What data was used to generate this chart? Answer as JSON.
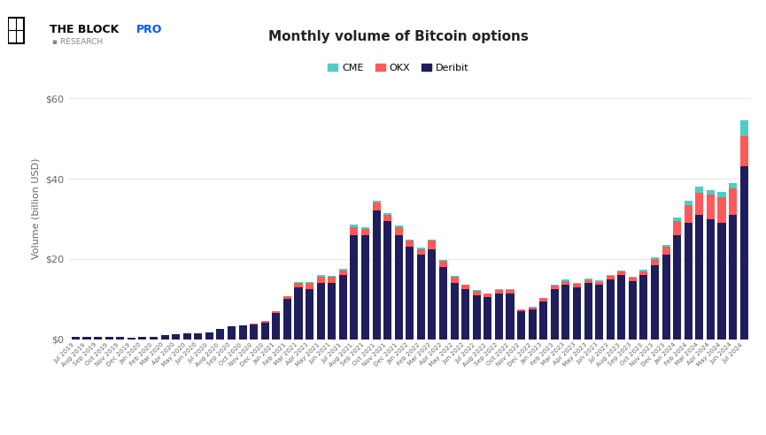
{
  "title": "Monthly volume of Bitcoin options",
  "ylabel": "Volume (billion USD)",
  "legend": [
    "CME",
    "OKX",
    "Deribit"
  ],
  "cme_color": "#4ecdc4",
  "okx_color": "#ff5a5a",
  "deribit_color": "#1e1e5c",
  "background_color": "#ffffff",
  "grid_color": "#e8e8e8",
  "ylim": [
    0,
    65
  ],
  "yticks": [
    0,
    20,
    40,
    60
  ],
  "ytick_labels": [
    "$0",
    "$20",
    "$40",
    "$60"
  ],
  "months": [
    "Jul 2019",
    "Aug 2019",
    "Sep 2019",
    "Oct 2019",
    "Nov 2019",
    "Dec 2019",
    "Jan 2020",
    "Feb 2020",
    "Mar 2020",
    "Apr 2020",
    "May 2020",
    "Jun 2020",
    "Jul 2020",
    "Aug 2020",
    "Sep 2020",
    "Oct 2020",
    "Nov 2020",
    "Dec 2020",
    "Jan 2021",
    "Feb 2021",
    "Mar 2021",
    "Apr 2021",
    "May 2021",
    "Jun 2021",
    "Jul 2021",
    "Aug 2021",
    "Sep 2021",
    "Oct 2021",
    "Nov 2021",
    "Dec 2021",
    "Jan 2022",
    "Feb 2022",
    "Mar 2022",
    "Apr 2022",
    "May 2022",
    "Jun 2022",
    "Jul 2022",
    "Aug 2022",
    "Sep 2022",
    "Oct 2022",
    "Nov 2022",
    "Dec 2022",
    "Jan 2023",
    "Feb 2023",
    "Mar 2023",
    "Apr 2023",
    "May 2023",
    "Jun 2023",
    "Jul 2023",
    "Aug 2023",
    "Sep 2023",
    "Oct 2023",
    "Nov 2023",
    "Dec 2023",
    "Jan 2024",
    "Feb 2024",
    "Mar 2024",
    "Apr 2024",
    "May 2024",
    "Jun 2024",
    "Jul 2024"
  ],
  "deribit": [
    0.7,
    0.5,
    0.5,
    0.5,
    0.5,
    0.4,
    0.7,
    0.7,
    1.0,
    1.2,
    1.5,
    1.5,
    1.8,
    2.5,
    3.2,
    3.5,
    3.8,
    4.2,
    6.5,
    10.0,
    13.0,
    12.5,
    14.0,
    14.0,
    16.0,
    26.0,
    26.0,
    32.0,
    29.5,
    26.0,
    23.0,
    21.0,
    22.5,
    18.0,
    14.0,
    12.5,
    11.0,
    10.5,
    11.5,
    11.5,
    7.0,
    7.5,
    9.5,
    12.5,
    13.5,
    13.0,
    14.0,
    13.5,
    15.0,
    16.0,
    14.5,
    16.0,
    18.5,
    21.0,
    26.0,
    29.0,
    31.0,
    30.0,
    29.0,
    31.0,
    43.0
  ],
  "okx": [
    0.0,
    0.0,
    0.0,
    0.0,
    0.0,
    0.0,
    0.0,
    0.0,
    0.0,
    0.0,
    0.0,
    0.0,
    0.0,
    0.0,
    0.0,
    0.0,
    0.2,
    0.3,
    0.5,
    0.8,
    1.0,
    1.5,
    1.5,
    1.5,
    1.2,
    2.0,
    1.5,
    2.0,
    1.5,
    2.0,
    1.5,
    1.5,
    2.0,
    1.5,
    1.5,
    1.0,
    1.0,
    0.8,
    0.8,
    0.8,
    0.4,
    0.4,
    0.7,
    0.8,
    1.0,
    0.8,
    0.8,
    0.8,
    0.8,
    0.8,
    0.8,
    1.0,
    1.5,
    2.0,
    3.5,
    4.5,
    5.5,
    6.0,
    6.5,
    6.5,
    7.5
  ],
  "cme": [
    0.0,
    0.0,
    0.0,
    0.0,
    0.0,
    0.0,
    0.0,
    0.0,
    0.0,
    0.0,
    0.0,
    0.0,
    0.0,
    0.0,
    0.0,
    0.0,
    0.0,
    0.0,
    0.0,
    0.0,
    0.2,
    0.3,
    0.5,
    0.4,
    0.3,
    0.5,
    0.4,
    0.5,
    0.4,
    0.4,
    0.4,
    0.3,
    0.4,
    0.3,
    0.3,
    0.2,
    0.2,
    0.2,
    0.2,
    0.2,
    0.1,
    0.1,
    0.2,
    0.2,
    0.4,
    0.3,
    0.4,
    0.3,
    0.3,
    0.3,
    0.3,
    0.4,
    0.5,
    0.5,
    0.8,
    1.0,
    1.5,
    1.2,
    1.3,
    1.5,
    4.0
  ],
  "logo_text1": "THE BLOCK",
  "logo_text2": "PRO",
  "logo_sub": "RESEARCH"
}
